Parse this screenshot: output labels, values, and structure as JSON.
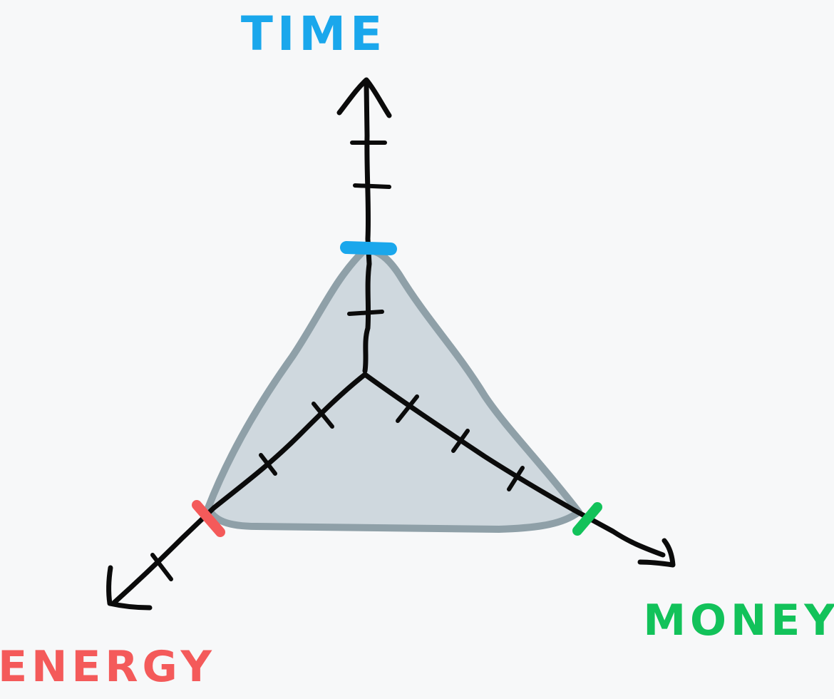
{
  "axes": {
    "time": {
      "label": "TIME",
      "color": "#1aa7ec"
    },
    "money": {
      "label": "MONEY",
      "color": "#12c25a"
    },
    "energy": {
      "label": "ENERGY",
      "color": "#f45a5a"
    }
  },
  "triangle": {
    "fill": "#cfd8de",
    "stroke": "#8fa0a8"
  },
  "icons": [
    "arrow-head-icon"
  ]
}
